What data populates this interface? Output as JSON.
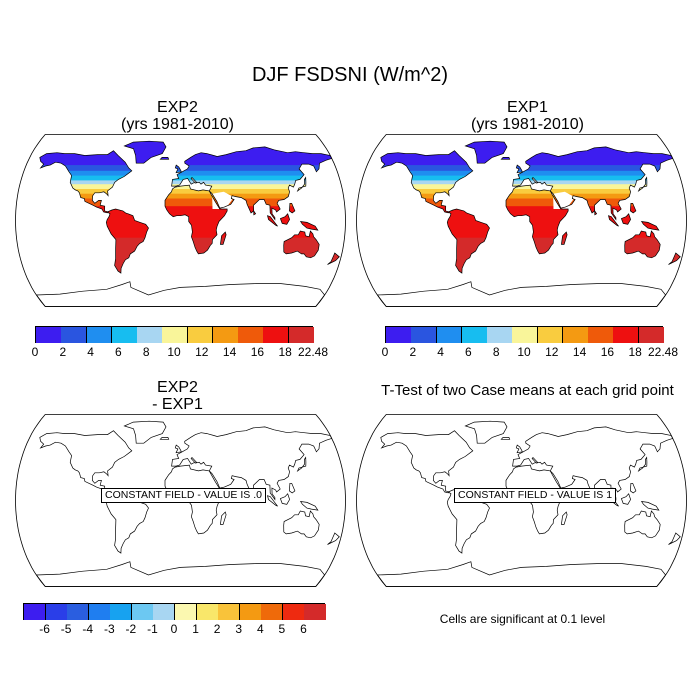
{
  "title": "DJF FSDSNI (W/m^2)",
  "panels": {
    "top_left": {
      "title_line1": "EXP2",
      "title_line2": "(yrs 1981-2010)"
    },
    "top_right": {
      "title_line1": "EXP1",
      "title_line2": "(yrs 1981-2010)"
    },
    "bottom_left": {
      "title_line1": "EXP2",
      "title_line2": "- EXP1",
      "field_label": "CONSTANT FIELD - VALUE IS .0"
    },
    "bottom_right": {
      "title": "T-Test of two Case means at each grid point",
      "field_label": "CONSTANT FIELD - VALUE IS 1"
    }
  },
  "significance_note": "Cells are significant at 0.1 level",
  "colorbars": {
    "climatology": {
      "labels": [
        "0",
        "2",
        "4",
        "6",
        "8",
        "10",
        "12",
        "14",
        "16",
        "18",
        "22.48"
      ],
      "colors": [
        "#3d1df0",
        "#2a55e0",
        "#1f8ef0",
        "#17bdf0",
        "#a8d6f2",
        "#f9f59a",
        "#f9cc3f",
        "#f49a12",
        "#ef5a0a",
        "#ee1010",
        "#d42a2a"
      ]
    },
    "difference": {
      "labels": [
        "-6",
        "-5",
        "-4",
        "-3",
        "-2",
        "-1",
        "0",
        "1",
        "2",
        "3",
        "4",
        "5",
        "6"
      ],
      "colors": [
        "#3d1df0",
        "#2a3ee8",
        "#2a5ee0",
        "#1f7ef0",
        "#17a2f0",
        "#6cc8f2",
        "#a8d6f2",
        "#fbf8b0",
        "#f9e76a",
        "#f9c33a",
        "#f49a12",
        "#ef6a0a",
        "#ee2a10",
        "#d42a2a"
      ]
    }
  }
}
